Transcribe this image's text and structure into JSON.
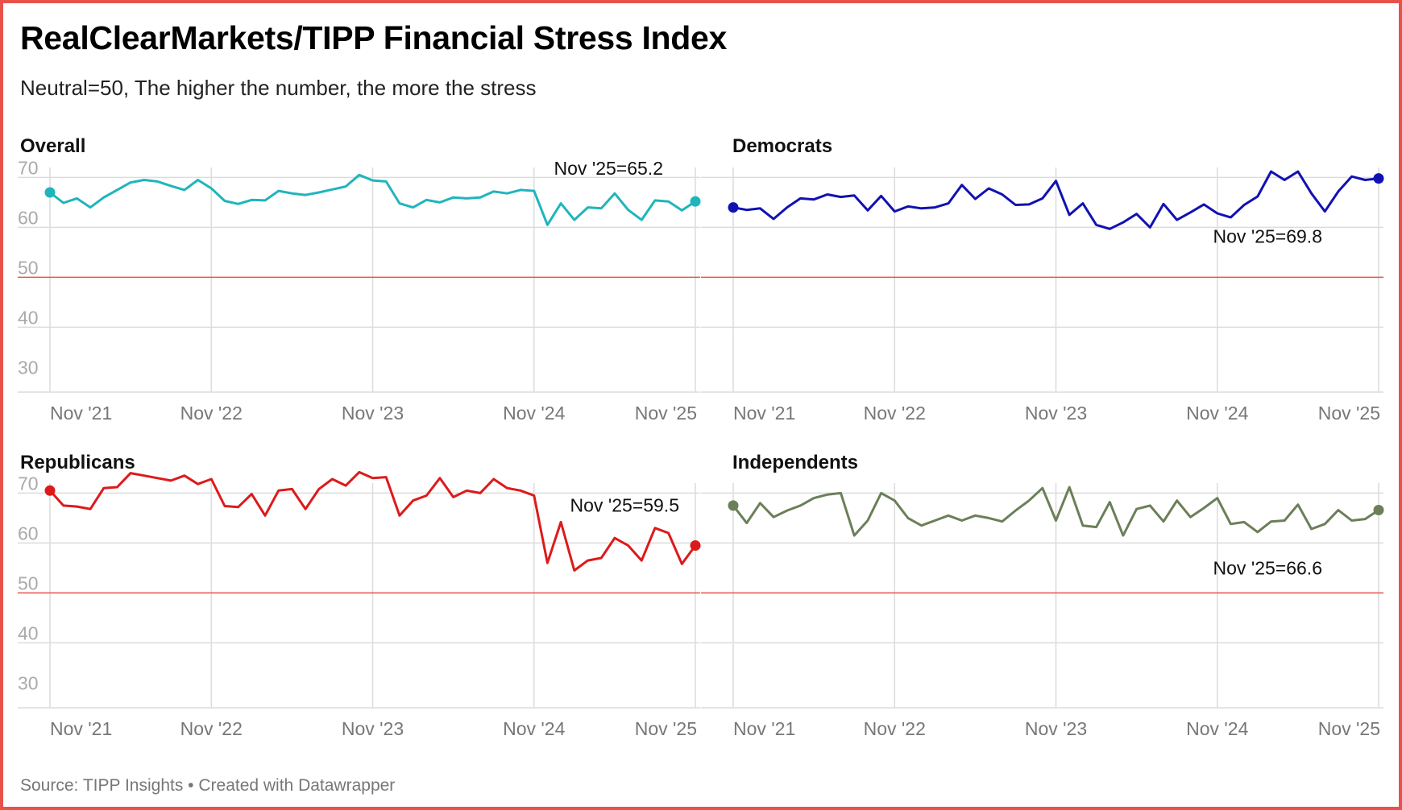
{
  "title": "RealClearMarkets/TIPP Financial Stress Index",
  "subtitle": "Neutral=50, The higher the number, the more the stress",
  "source": "Source: TIPP Insights • Created with Datawrapper",
  "colors": {
    "overall": "#1fb5bd",
    "democrats": "#1111b3",
    "republicans": "#dd1a1a",
    "independents": "#6b7f58",
    "neutral_line": "#e8524a"
  },
  "chart_data": [
    {
      "type": "line",
      "title": "Overall",
      "color_key": "overall",
      "ylim": [
        27,
        72
      ],
      "yticks": [
        30,
        40,
        50,
        60,
        70
      ],
      "reference_line": 50,
      "x_start": "Nov '21",
      "xticks": [
        "Nov '21",
        "Nov '22",
        "Nov '23",
        "Nov '24",
        "Nov '25"
      ],
      "annotation": "Nov '25=65.2",
      "annotation_position": "above-right",
      "values": [
        67.0,
        64.9,
        65.8,
        64.0,
        66.0,
        67.5,
        69.0,
        69.5,
        69.2,
        68.3,
        67.5,
        69.5,
        67.8,
        65.3,
        64.7,
        65.5,
        65.4,
        67.3,
        66.8,
        66.5,
        67.0,
        67.6,
        68.2,
        70.5,
        69.4,
        69.2,
        64.8,
        64.0,
        65.5,
        65.0,
        66.0,
        65.8,
        66.0,
        67.2,
        66.8,
        67.5,
        67.3,
        60.5,
        64.8,
        61.5,
        64.0,
        63.8,
        66.8,
        63.5,
        61.5,
        65.4,
        65.2,
        63.4,
        65.2
      ]
    },
    {
      "type": "line",
      "title": "Democrats",
      "color_key": "democrats",
      "ylim": [
        27,
        72
      ],
      "yticks": [
        30,
        40,
        50,
        60,
        70
      ],
      "reference_line": 50,
      "x_start": "Nov '21",
      "xticks": [
        "Nov '21",
        "Nov '22",
        "Nov '23",
        "Nov '24",
        "Nov '25"
      ],
      "annotation": "Nov '25=69.8",
      "annotation_position": "below",
      "values": [
        64.0,
        63.5,
        63.8,
        61.7,
        64.0,
        65.8,
        65.6,
        66.6,
        66.1,
        66.4,
        63.4,
        66.3,
        63.2,
        64.2,
        63.8,
        64.0,
        64.8,
        68.5,
        65.7,
        67.8,
        66.6,
        64.5,
        64.6,
        65.8,
        69.3,
        62.5,
        64.8,
        60.5,
        59.7,
        61.0,
        62.7,
        60.0,
        64.7,
        61.5,
        63.0,
        64.6,
        62.8,
        62.0,
        64.5,
        66.2,
        71.2,
        69.5,
        71.2,
        66.8,
        63.2,
        67.2,
        70.2,
        69.5,
        69.8
      ]
    },
    {
      "type": "line",
      "title": "Republicans",
      "color_key": "republicans",
      "ylim": [
        27,
        72
      ],
      "yticks": [
        30,
        40,
        50,
        60,
        70
      ],
      "reference_line": 50,
      "x_start": "Nov '21",
      "xticks": [
        "Nov '21",
        "Nov '22",
        "Nov '23",
        "Nov '24",
        "Nov '25"
      ],
      "annotation": "Nov '25=59.5",
      "annotation_position": "above",
      "values": [
        70.5,
        67.5,
        67.3,
        66.8,
        71.0,
        71.2,
        74.0,
        73.5,
        73.0,
        72.5,
        73.5,
        71.8,
        72.8,
        67.4,
        67.2,
        69.8,
        65.5,
        70.5,
        70.8,
        66.8,
        70.8,
        72.8,
        71.5,
        74.2,
        73.0,
        73.2,
        65.5,
        68.5,
        69.5,
        73.0,
        69.2,
        70.5,
        70.0,
        72.8,
        71.0,
        70.5,
        69.5,
        56.0,
        64.2,
        54.5,
        56.5,
        57.0,
        61.0,
        59.5,
        56.5,
        63.0,
        62.0,
        55.8,
        59.5
      ]
    },
    {
      "type": "line",
      "title": "Independents",
      "color_key": "independents",
      "ylim": [
        27,
        72
      ],
      "yticks": [
        30,
        40,
        50,
        60,
        70
      ],
      "reference_line": 50,
      "x_start": "Nov '21",
      "xticks": [
        "Nov '21",
        "Nov '22",
        "Nov '23",
        "Nov '24",
        "Nov '25"
      ],
      "annotation": "Nov '25=66.6",
      "annotation_position": "below",
      "values": [
        67.5,
        64.0,
        68.0,
        65.2,
        66.5,
        67.5,
        69.0,
        69.7,
        70.0,
        61.5,
        64.5,
        70.0,
        68.5,
        65.0,
        63.5,
        64.5,
        65.5,
        64.5,
        65.5,
        65.0,
        64.3,
        66.5,
        68.5,
        71.0,
        64.5,
        71.2,
        63.5,
        63.2,
        68.2,
        61.5,
        66.8,
        67.5,
        64.3,
        68.5,
        65.2,
        67.0,
        69.0,
        63.8,
        64.2,
        62.2,
        64.3,
        64.5,
        67.7,
        62.8,
        63.8,
        66.6,
        64.5,
        64.8,
        66.6
      ]
    }
  ]
}
